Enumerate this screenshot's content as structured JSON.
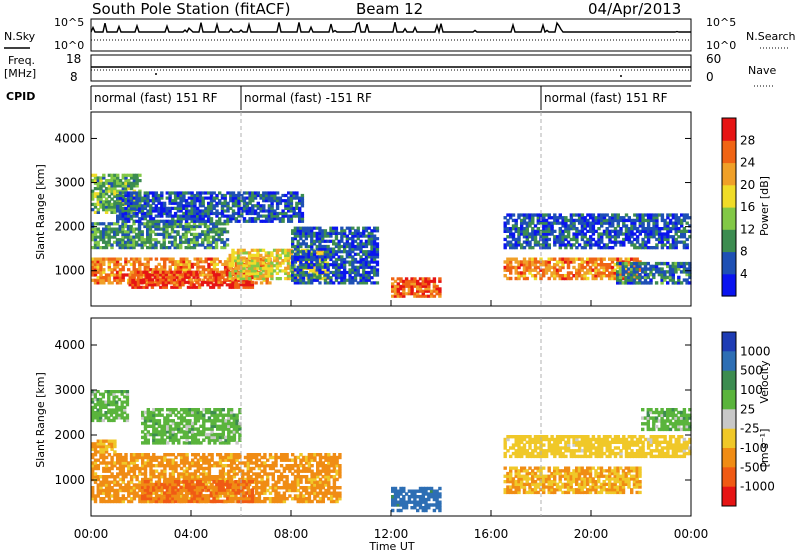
{
  "header": {
    "station": "South Pole Station (fitACF)",
    "beam": "Beam 12",
    "date": "04/Apr/2013"
  },
  "top_panels": {
    "nsky_label": "N.Sky",
    "nsearch_label": "N.Search",
    "nsky_ticks": [
      "10^5",
      "10^0"
    ],
    "freq_label_line1": "Freq.",
    "freq_label_line2": "[MHz]",
    "freq_ticks": [
      "18",
      "8"
    ],
    "nave_label": "Nave",
    "nave_ticks": [
      "60",
      "0"
    ],
    "cpid_label": "CPID",
    "cpid_segments": [
      {
        "label": "normal (fast) 151 RF",
        "start": 0,
        "end": 6
      },
      {
        "label": "normal (fast) -151 RF",
        "start": 6,
        "end": 18
      },
      {
        "label": "normal (fast) 151 RF",
        "start": 18,
        "end": 24
      }
    ]
  },
  "axes": {
    "ylabel": "Slant Range [km]",
    "xlabel": "Time UT",
    "x_ticks": [
      "00:00",
      "04:00",
      "08:00",
      "12:00",
      "16:00",
      "20:00",
      "00:00"
    ],
    "y_ticks": [
      "1000",
      "2000",
      "3000",
      "4000"
    ]
  },
  "colorbars": {
    "power": {
      "label": "Power [dB]",
      "ticks": [
        "4",
        "8",
        "12",
        "16",
        "20",
        "24",
        "28"
      ],
      "colors": [
        "#0a14f0",
        "#1e50b4",
        "#3c8c50",
        "#82c846",
        "#f0dc28",
        "#f0a028",
        "#f06414",
        "#e61414"
      ]
    },
    "velocity": {
      "label": "Velocity",
      "unit": "[m s⁻¹]",
      "ticks": [
        "1000",
        "500",
        "100",
        "25",
        "-25",
        "-100",
        "-500",
        "-1000"
      ],
      "colors": [
        "#1e3cb4",
        "#2d6eb4",
        "#3c8c50",
        "#5ab43c",
        "#c8c8c8",
        "#f0c828",
        "#f08c14",
        "#f05a14",
        "#e61414"
      ]
    }
  },
  "chart_data": [
    {
      "type": "heatmap",
      "title": "Power",
      "xlabel": "Time UT",
      "ylabel": "Slant Range [km]",
      "x_unit": "hours UT",
      "xlim": [
        0,
        24
      ],
      "ylim": [
        200,
        4600
      ],
      "colorbar_label": "Power [dB]",
      "clim": [
        0,
        30
      ],
      "regions": [
        {
          "t0": 0.0,
          "t1": 7.2,
          "r0": 700,
          "r1": 1300,
          "value": 24
        },
        {
          "t0": 1.5,
          "t1": 6.5,
          "r0": 600,
          "r1": 1000,
          "value": 28
        },
        {
          "t0": 5.5,
          "t1": 9.5,
          "r0": 800,
          "r1": 1500,
          "value": 18
        },
        {
          "t0": 0.0,
          "t1": 5.5,
          "r0": 1500,
          "r1": 2100,
          "value": 10
        },
        {
          "t0": 0.0,
          "t1": 2.0,
          "r0": 2300,
          "r1": 3200,
          "value": 12
        },
        {
          "t0": 1.0,
          "t1": 8.5,
          "r0": 2100,
          "r1": 2800,
          "value": 6
        },
        {
          "t0": 8.0,
          "t1": 11.5,
          "r0": 700,
          "r1": 2000,
          "value": 6
        },
        {
          "t0": 12.0,
          "t1": 14.0,
          "r0": 400,
          "r1": 850,
          "value": 26
        },
        {
          "t0": 16.5,
          "t1": 22.0,
          "r0": 800,
          "r1": 1300,
          "value": 24
        },
        {
          "t0": 16.5,
          "t1": 24.0,
          "r0": 1500,
          "r1": 2300,
          "value": 6
        },
        {
          "t0": 21.0,
          "t1": 24.0,
          "r0": 700,
          "r1": 1200,
          "value": 8
        }
      ]
    },
    {
      "type": "heatmap",
      "title": "Velocity",
      "xlabel": "Time UT",
      "ylabel": "Slant Range [km]",
      "x_unit": "hours UT",
      "xlim": [
        0,
        24
      ],
      "ylim": [
        200,
        4600
      ],
      "colorbar_label": "Velocity [m s-1]",
      "clim": [
        -1000,
        1000
      ],
      "regions": [
        {
          "t0": 0.0,
          "t1": 10.0,
          "r0": 500,
          "r1": 1600,
          "value": -400
        },
        {
          "t0": 2.0,
          "t1": 6.5,
          "r0": 500,
          "r1": 1000,
          "value": -600
        },
        {
          "t0": 0.0,
          "t1": 1.0,
          "r0": 1600,
          "r1": 1900,
          "value": -300
        },
        {
          "t0": 0.0,
          "t1": 1.5,
          "r0": 2300,
          "r1": 3000,
          "value": 0
        },
        {
          "t0": 2.0,
          "t1": 6.0,
          "r0": 1800,
          "r1": 2600,
          "value": 0
        },
        {
          "t0": 12.0,
          "t1": 14.0,
          "r0": 300,
          "r1": 850,
          "value": 150
        },
        {
          "t0": 16.5,
          "t1": 22.0,
          "r0": 700,
          "r1": 1300,
          "value": -300
        },
        {
          "t0": 22.0,
          "t1": 24.0,
          "r0": 2100,
          "r1": 2600,
          "value": 0
        },
        {
          "t0": 16.5,
          "t1": 24.0,
          "r0": 1500,
          "r1": 2000,
          "value": -150
        }
      ]
    }
  ]
}
